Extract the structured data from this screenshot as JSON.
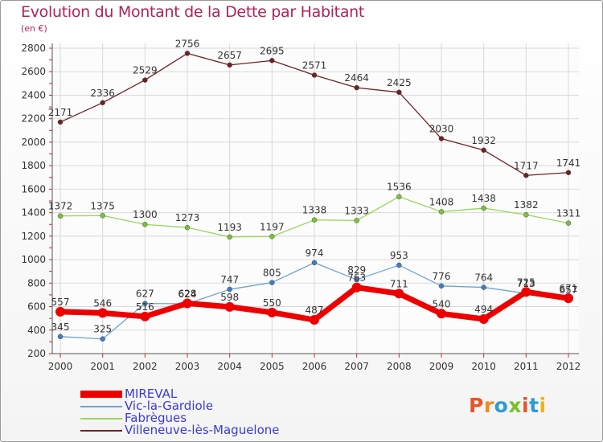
{
  "header": {
    "title": "Evolution du Montant de la Dette par Habitant",
    "subtitle": "(en €)"
  },
  "logo": {
    "text": "Proxiti",
    "colors": [
      "#e7542a",
      "#f08a1b",
      "#2c9bd6",
      "#7abf2a",
      "#e7542a",
      "#2c9bd6",
      "#f0b41b"
    ]
  },
  "colors": {
    "title": "#b1235a",
    "grid": "#d9d9d9",
    "axis": "#555555",
    "legend_text": "#3a3adb"
  },
  "chart_data": {
    "type": "line",
    "title": "Evolution du Montant de la Dette par Habitant",
    "ylabel": "(en €)",
    "xlabel": "",
    "x": [
      "2000",
      "2001",
      "2002",
      "2003",
      "2004",
      "2005",
      "2006",
      "2007",
      "2008",
      "2009",
      "2010",
      "2011",
      "2012"
    ],
    "ylim": [
      200,
      2800
    ],
    "yticks": [
      200,
      400,
      600,
      800,
      1000,
      1200,
      1400,
      1600,
      1800,
      2000,
      2200,
      2400,
      2600,
      2800
    ],
    "grid": true,
    "legend_position": "bottom-left",
    "series": [
      {
        "name": "Villeneuve-lès-Maguelone",
        "color": "#6e2224",
        "marker": "#6e2224",
        "values": [
          2171,
          2336,
          2529,
          2756,
          2657,
          2695,
          2571,
          2464,
          2425,
          2030,
          1932,
          1717,
          1741
        ],
        "labels": [
          "2171",
          "2336",
          "2529",
          "2756",
          "2657",
          "2695",
          "2571",
          "2464",
          "2425",
          "2030",
          "1932",
          "1717",
          "1741"
        ]
      },
      {
        "name": "Fabrègues",
        "color": "#9ad55c",
        "marker": "#7ac33a",
        "values": [
          1372,
          1375,
          1300,
          1273,
          1193,
          1197,
          1338,
          1333,
          1536,
          1408,
          1438,
          1382,
          1311
        ],
        "labels": [
          "1372",
          "1375",
          "1300",
          "1273",
          "1193",
          "1197",
          "1338",
          "1333",
          "1536",
          "1408",
          "1438",
          "1382",
          "1311"
        ]
      },
      {
        "name": "Vic-la-Gardiole",
        "color": "#6fa3cf",
        "marker": "#3f7fc0",
        "values": [
          345,
          325,
          627,
          624,
          747,
          805,
          974,
          829,
          953,
          776,
          764,
          713,
          657
        ],
        "labels": [
          "345",
          "325",
          "627",
          "624",
          "747",
          "805",
          "974",
          "829",
          "953",
          "776",
          "764",
          "713",
          "657"
        ]
      },
      {
        "name": "MIREVAL",
        "color": "#ee0000",
        "marker": "#ee0000",
        "values": [
          557,
          546,
          516,
          628,
          598,
          550,
          487,
          763,
          711,
          540,
          494,
          725,
          671
        ],
        "labels": [
          "557",
          "546",
          "516",
          "628",
          "598",
          "550",
          "487",
          "763",
          "711",
          "540",
          "494",
          "725",
          "671"
        ]
      }
    ],
    "legend": [
      "MIREVAL",
      "Vic-la-Gardiole",
      "Fabrègues",
      "Villeneuve-lès-Maguelone"
    ]
  }
}
